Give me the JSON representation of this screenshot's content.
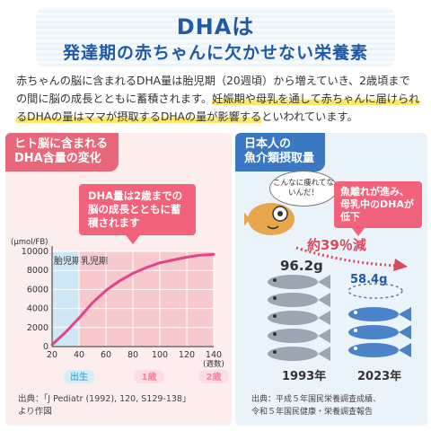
{
  "header": {
    "title": "DHAは",
    "subtitle": "発達期の赤ちゃんに欠かせない栄養素"
  },
  "intro": {
    "part1": "赤ちゃんの脳に含まれるDHA量は胎児期（20週頃）から増えていき、2歳頃までの間に脳の成長とともに蓄積されます。",
    "highlight": "妊娠期や母乳を通して赤ちゃんに届けられるDHAの量はママが摂取するDHAの量が影響する",
    "part2": "といわれています。"
  },
  "left_panel": {
    "tab_line1": "ヒト脳に含まれる",
    "tab_line2": "DHA含量の変化",
    "callout": "DHA量は2歳までの脳の成長とともに蓄積されます",
    "source_line1": "出典：「J Pediatr (1992), 120, S129-138」",
    "source_line2": "より作図",
    "colors": {
      "fetal_band": "#cfe6f4",
      "infant_band": "#f8c9cc",
      "curve": "#e0448a",
      "accent": "#f2627a"
    }
  },
  "right_panel": {
    "tab_line1": "日本人の",
    "tab_line2": "魚介類摂取量",
    "bubble": "こんなに痩れてないんだ！",
    "callout": "魚離れが進み、母乳中のDHAが低下",
    "decrease": "約39％減",
    "value_1993": "96.2g",
    "value_2023": "58.4g",
    "year_1993": "1993年",
    "year_2023": "2023年",
    "source_line1": "出典：平成５年国民栄養調査成績、",
    "source_line2": "令和５年国民健康・栄養調査報告"
  },
  "chart_data": {
    "type": "line",
    "title": "",
    "ylabel": "(μmol/FB)",
    "xlabel": "(週数)",
    "x_ticks": [
      20,
      40,
      60,
      80,
      100,
      120,
      140
    ],
    "y_ticks": [
      0,
      2000,
      4000,
      6000,
      8000,
      10000
    ],
    "xlim": [
      20,
      140
    ],
    "ylim": [
      0,
      10000
    ],
    "regions": [
      {
        "label": "胎児期",
        "from": 20,
        "to": 40
      },
      {
        "label": "乳児期",
        "from": 40,
        "to": 140
      }
    ],
    "milestones": [
      {
        "label": "出生",
        "x": 40
      },
      {
        "label": "1歳",
        "x": 92
      },
      {
        "label": "2歳",
        "x": 140
      }
    ],
    "series": [
      {
        "x": [
          20,
          30,
          40,
          50,
          60,
          70,
          80,
          90,
          100,
          110,
          120,
          130,
          140
        ],
        "y": [
          200,
          1500,
          3000,
          4600,
          5900,
          6900,
          7700,
          8300,
          8800,
          9100,
          9400,
          9600,
          9700
        ]
      }
    ],
    "grid": true
  }
}
